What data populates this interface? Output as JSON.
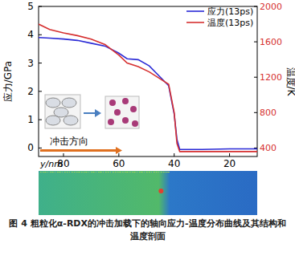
{
  "chart_data": {
    "type": "line",
    "caption": "图 4  粗粒化α-RDX的冲击加载下的轴向应力-温度分布曲线及其结构和温度剖面",
    "x_label": "y/nm",
    "y_label": "应力/GPa",
    "y2_label": "温度/K",
    "annotation": "冲击方向",
    "x": [
      89,
      85,
      80,
      75,
      70,
      65,
      60,
      57,
      53,
      49,
      45,
      42,
      40,
      39,
      38,
      30,
      20,
      10
    ],
    "series": [
      {
        "name": "应力(13ps)",
        "color": "#2b2bd6",
        "values": [
          3.9,
          3.88,
          3.85,
          3.8,
          3.7,
          3.6,
          3.35,
          3.15,
          3.12,
          2.9,
          2.5,
          2.2,
          1.2,
          0.3,
          -0.05,
          -0.05,
          -0.03,
          -0.03
        ]
      },
      {
        "name": "温度(13ps)",
        "color": "#d63030",
        "axis": "y2",
        "values": [
          1800,
          1740,
          1700,
          1670,
          1630,
          1570,
          1450,
          1360,
          1320,
          1260,
          1180,
          1120,
          800,
          450,
          360,
          360,
          360,
          360
        ]
      }
    ],
    "xlim": [
      89,
      10
    ],
    "xticks": [
      80,
      60,
      40,
      20
    ],
    "ylim": [
      -0.3,
      5
    ],
    "yticks": [
      0,
      1,
      2,
      3,
      4,
      5
    ],
    "y2lim": [
      304,
      2000
    ],
    "y2ticks": [
      400,
      800,
      1200,
      1600,
      2000
    ],
    "legend": "upper-right"
  }
}
